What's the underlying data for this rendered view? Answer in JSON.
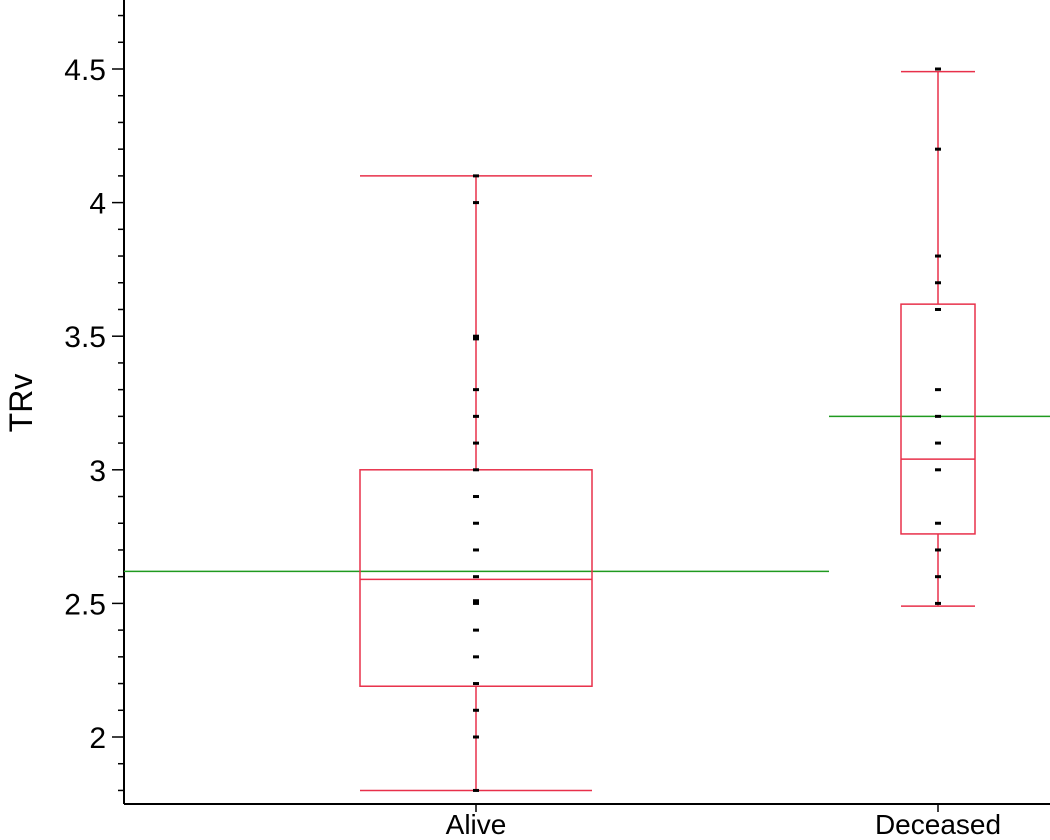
{
  "chart_data": {
    "type": "box",
    "title": "",
    "xlabel": "",
    "ylabel": "TRv",
    "ylim": [
      1.75,
      4.75
    ],
    "yticks": [
      2,
      2.5,
      3,
      3.5,
      4,
      4.5
    ],
    "ytick_labels": [
      "2",
      "2.5",
      "3",
      "3.5",
      "4",
      "4.5"
    ],
    "grid": false,
    "colors": {
      "box": "#e8304a",
      "mean_line": "#1f9a1f",
      "point": "#000000",
      "axis": "#000000"
    },
    "categories": [
      "Alive",
      "Deceased"
    ],
    "groups": [
      {
        "name": "Alive",
        "whisker_low": 1.8,
        "q1": 2.19,
        "median": 2.59,
        "q3": 3.0,
        "whisker_high": 4.1,
        "group_mean": 2.62,
        "points": [
          1.8,
          2.0,
          2.1,
          2.2,
          2.3,
          2.4,
          2.5,
          2.51,
          2.6,
          2.7,
          2.8,
          2.9,
          3.0,
          3.1,
          3.2,
          3.3,
          3.49,
          3.5,
          4.0,
          4.1
        ]
      },
      {
        "name": "Deceased",
        "whisker_low": 2.49,
        "q1": 2.76,
        "median": 3.04,
        "q3": 3.62,
        "whisker_high": 4.49,
        "group_mean": 3.2,
        "points": [
          2.5,
          2.6,
          2.7,
          2.8,
          3.0,
          3.1,
          3.2,
          3.3,
          3.6,
          3.7,
          3.8,
          4.2,
          4.5
        ]
      }
    ]
  }
}
